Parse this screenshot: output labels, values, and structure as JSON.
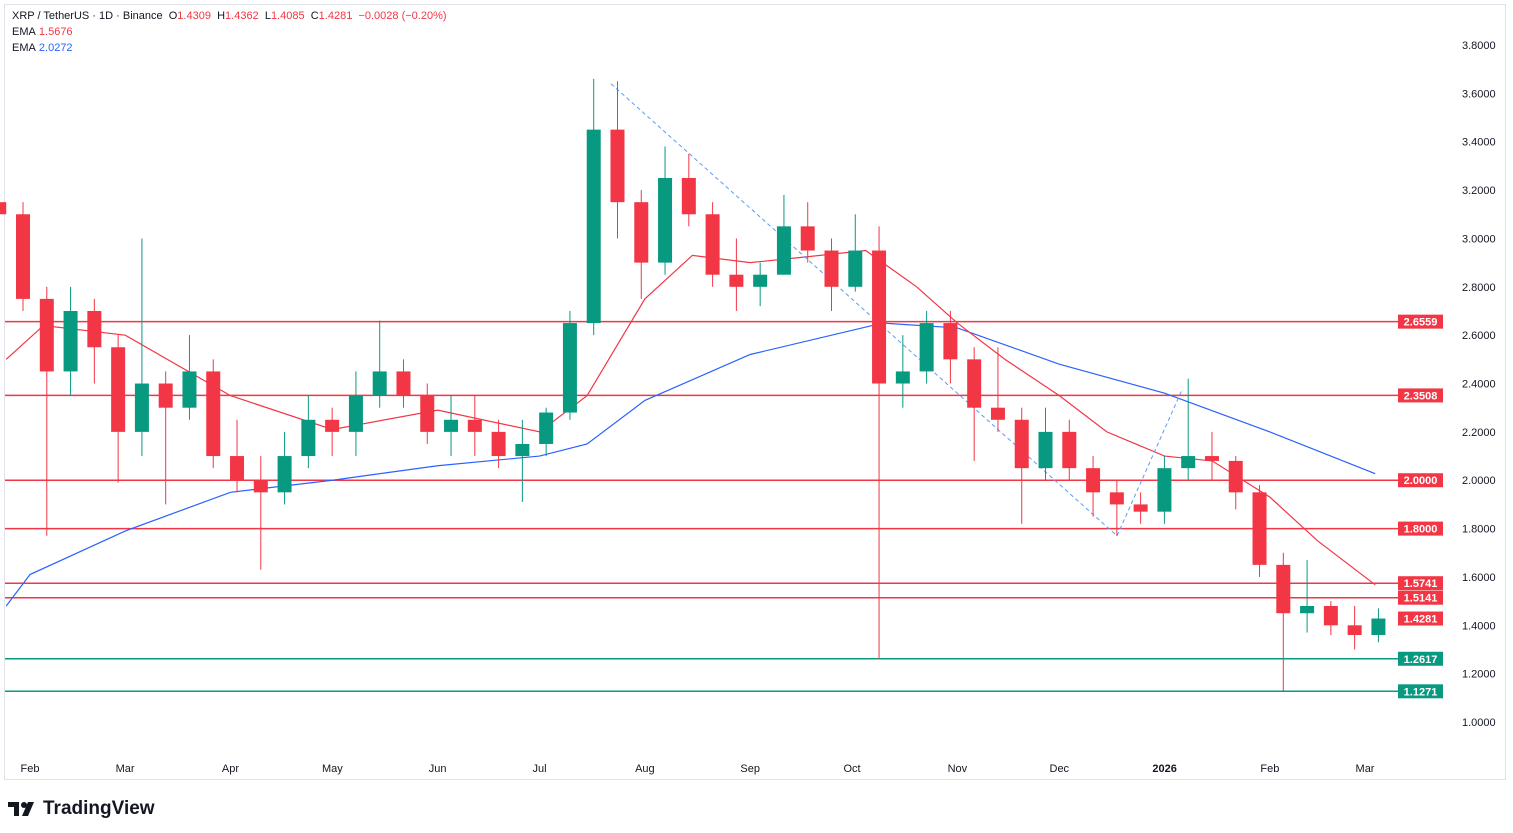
{
  "header": {
    "symbol": "XRP / TetherUS · 1D · Binance",
    "o_label": "O",
    "o": "1.4309",
    "h_label": "H",
    "h": "1.4362",
    "l_label": "L",
    "l": "1.4085",
    "c_label": "C",
    "c": "1.4281",
    "change": "−0.0028 (−0.20%)",
    "ema1_label": "EMA",
    "ema1": "1.5676",
    "ema2_label": "EMA",
    "ema2": "2.0272"
  },
  "branding": {
    "logo": "TradingView"
  },
  "colors": {
    "up": "#089981",
    "down": "#f23645",
    "ema_fast": "#f23645",
    "ema_slow": "#2962ff",
    "trendline": "#5b9cf6",
    "support": "#089981",
    "resistance": "#f23645"
  },
  "chart_data": {
    "type": "candlestick",
    "ylim": [
      0.92,
      3.93
    ],
    "yticks": [
      "3.8000",
      "3.6000",
      "3.4000",
      "3.2000",
      "3.0000",
      "2.8000",
      "2.6000",
      "2.4000",
      "2.2000",
      "2.0000",
      "1.8000",
      "1.6000",
      "1.4000",
      "1.2000",
      "1.0000"
    ],
    "xticks": [
      {
        "date": "2025-02-01",
        "label": "Feb"
      },
      {
        "date": "2025-03-01",
        "label": "Mar"
      },
      {
        "date": "2025-04-01",
        "label": "Apr"
      },
      {
        "date": "2025-05-01",
        "label": "May"
      },
      {
        "date": "2025-06-01",
        "label": "Jun"
      },
      {
        "date": "2025-07-01",
        "label": "Jul"
      },
      {
        "date": "2025-08-01",
        "label": "Aug"
      },
      {
        "date": "2025-09-01",
        "label": "Sep"
      },
      {
        "date": "2025-10-01",
        "label": "Oct"
      },
      {
        "date": "2025-11-01",
        "label": "Nov"
      },
      {
        "date": "2025-12-01",
        "label": "Dec"
      },
      {
        "date": "2026-01-01",
        "label": "2026"
      },
      {
        "date": "2026-02-01",
        "label": "Feb"
      },
      {
        "date": "2026-03-01",
        "label": "Mar"
      }
    ],
    "candles": [
      [
        "2025-01-20",
        3.15,
        3.22,
        2.95,
        3.1
      ],
      [
        "2025-01-27",
        3.1,
        3.15,
        2.7,
        2.75
      ],
      [
        "2025-02-03",
        2.75,
        2.8,
        1.77,
        2.45
      ],
      [
        "2025-02-10",
        2.45,
        2.8,
        2.35,
        2.7
      ],
      [
        "2025-02-17",
        2.7,
        2.75,
        2.4,
        2.55
      ],
      [
        "2025-02-24",
        2.55,
        2.6,
        1.99,
        2.2
      ],
      [
        "2025-03-03",
        2.2,
        3.0,
        2.1,
        2.4
      ],
      [
        "2025-03-10",
        2.4,
        2.45,
        1.9,
        2.3
      ],
      [
        "2025-03-17",
        2.3,
        2.6,
        2.25,
        2.45
      ],
      [
        "2025-03-24",
        2.45,
        2.5,
        2.05,
        2.1
      ],
      [
        "2025-03-31",
        2.1,
        2.25,
        1.95,
        2.0
      ],
      [
        "2025-04-07",
        2.0,
        2.1,
        1.63,
        1.95
      ],
      [
        "2025-04-14",
        1.95,
        2.2,
        1.9,
        2.1
      ],
      [
        "2025-04-21",
        2.1,
        2.35,
        2.05,
        2.25
      ],
      [
        "2025-04-28",
        2.25,
        2.3,
        2.1,
        2.2
      ],
      [
        "2025-05-05",
        2.2,
        2.45,
        2.1,
        2.35
      ],
      [
        "2025-05-12",
        2.35,
        2.66,
        2.3,
        2.45
      ],
      [
        "2025-05-19",
        2.45,
        2.5,
        2.3,
        2.35
      ],
      [
        "2025-05-26",
        2.35,
        2.4,
        2.15,
        2.2
      ],
      [
        "2025-06-02",
        2.2,
        2.35,
        2.1,
        2.25
      ],
      [
        "2025-06-09",
        2.25,
        2.35,
        2.1,
        2.2
      ],
      [
        "2025-06-16",
        2.2,
        2.25,
        2.05,
        2.1
      ],
      [
        "2025-06-23",
        2.1,
        2.25,
        1.91,
        2.15
      ],
      [
        "2025-06-30",
        2.15,
        2.3,
        2.1,
        2.28
      ],
      [
        "2025-07-07",
        2.28,
        2.7,
        2.25,
        2.65
      ],
      [
        "2025-07-14",
        2.65,
        3.66,
        2.6,
        3.45
      ],
      [
        "2025-07-21",
        3.45,
        3.65,
        3.0,
        3.15
      ],
      [
        "2025-07-28",
        3.15,
        3.2,
        2.75,
        2.9
      ],
      [
        "2025-08-04",
        2.9,
        3.38,
        2.85,
        3.25
      ],
      [
        "2025-08-11",
        3.25,
        3.35,
        3.05,
        3.1
      ],
      [
        "2025-08-18",
        3.1,
        3.15,
        2.8,
        2.85
      ],
      [
        "2025-08-25",
        2.85,
        3.0,
        2.7,
        2.8
      ],
      [
        "2025-09-01",
        2.8,
        2.9,
        2.72,
        2.85
      ],
      [
        "2025-09-08",
        2.85,
        3.18,
        2.85,
        3.05
      ],
      [
        "2025-09-15",
        3.05,
        3.15,
        2.9,
        2.95
      ],
      [
        "2025-09-22",
        2.95,
        3.0,
        2.7,
        2.8
      ],
      [
        "2025-09-29",
        2.8,
        3.1,
        2.78,
        2.95
      ],
      [
        "2025-10-06",
        2.95,
        3.05,
        1.26,
        2.4
      ],
      [
        "2025-10-13",
        2.4,
        2.6,
        2.3,
        2.45
      ],
      [
        "2025-10-20",
        2.45,
        2.7,
        2.4,
        2.65
      ],
      [
        "2025-10-27",
        2.65,
        2.7,
        2.4,
        2.5
      ],
      [
        "2025-11-03",
        2.5,
        2.55,
        2.08,
        2.3
      ],
      [
        "2025-11-10",
        2.3,
        2.55,
        2.2,
        2.25
      ],
      [
        "2025-11-17",
        2.25,
        2.3,
        1.82,
        2.05
      ],
      [
        "2025-11-24",
        2.05,
        2.3,
        2.0,
        2.2
      ],
      [
        "2025-12-01",
        2.2,
        2.25,
        2.0,
        2.05
      ],
      [
        "2025-12-08",
        2.05,
        2.1,
        1.85,
        1.95
      ],
      [
        "2025-12-15",
        1.95,
        2.0,
        1.77,
        1.9
      ],
      [
        "2025-12-22",
        1.9,
        1.95,
        1.82,
        1.87
      ],
      [
        "2025-12-29",
        1.87,
        2.1,
        1.82,
        2.05
      ],
      [
        "2026-01-05",
        2.05,
        2.42,
        2.0,
        2.1
      ],
      [
        "2026-01-12",
        2.1,
        2.2,
        2.0,
        2.08
      ],
      [
        "2026-01-19",
        2.08,
        2.1,
        1.88,
        1.95
      ],
      [
        "2026-01-26",
        1.95,
        1.98,
        1.6,
        1.65
      ],
      [
        "2026-02-02",
        1.65,
        1.7,
        1.13,
        1.45
      ],
      [
        "2026-02-09",
        1.45,
        1.67,
        1.37,
        1.48
      ],
      [
        "2026-02-16",
        1.48,
        1.5,
        1.36,
        1.4
      ],
      [
        "2026-02-23",
        1.4,
        1.48,
        1.3,
        1.36
      ],
      [
        "2026-03-02",
        1.36,
        1.47,
        1.33,
        1.4281
      ]
    ],
    "ema_fast": [
      [
        "2025-01-25",
        2.5
      ],
      [
        "2025-02-05",
        2.64
      ],
      [
        "2025-03-01",
        2.6
      ],
      [
        "2025-04-01",
        2.35
      ],
      [
        "2025-05-01",
        2.21
      ],
      [
        "2025-06-01",
        2.29
      ],
      [
        "2025-07-01",
        2.2
      ],
      [
        "2025-07-15",
        2.35
      ],
      [
        "2025-08-01",
        2.75
      ],
      [
        "2025-08-15",
        2.93
      ],
      [
        "2025-09-01",
        2.9
      ],
      [
        "2025-09-15",
        2.92
      ],
      [
        "2025-10-05",
        2.95
      ],
      [
        "2025-10-20",
        2.8
      ],
      [
        "2025-11-01",
        2.65
      ],
      [
        "2025-11-15",
        2.5
      ],
      [
        "2025-12-01",
        2.35
      ],
      [
        "2025-12-15",
        2.2
      ],
      [
        "2026-01-01",
        2.1
      ],
      [
        "2026-01-15",
        2.08
      ],
      [
        "2026-02-01",
        1.93
      ],
      [
        "2026-02-15",
        1.75
      ],
      [
        "2026-03-04",
        1.5676
      ]
    ],
    "ema_slow": [
      [
        "2025-01-25",
        1.48
      ],
      [
        "2025-02-01",
        1.61
      ],
      [
        "2025-03-01",
        1.79
      ],
      [
        "2025-04-01",
        1.95
      ],
      [
        "2025-05-01",
        2.0
      ],
      [
        "2025-06-01",
        2.06
      ],
      [
        "2025-07-01",
        2.1
      ],
      [
        "2025-07-15",
        2.15
      ],
      [
        "2025-08-01",
        2.33
      ],
      [
        "2025-09-01",
        2.52
      ],
      [
        "2025-10-10",
        2.65
      ],
      [
        "2025-11-01",
        2.63
      ],
      [
        "2025-12-01",
        2.48
      ],
      [
        "2026-01-01",
        2.36
      ],
      [
        "2026-02-01",
        2.2
      ],
      [
        "2026-03-04",
        2.0272
      ]
    ],
    "trendlines": [
      [
        [
          "2025-07-22",
          3.64
        ],
        [
          "2025-12-18",
          1.77
        ]
      ],
      [
        [
          "2025-12-18",
          1.77
        ],
        [
          "2026-01-06",
          2.37
        ]
      ]
    ],
    "levels": [
      {
        "value": 2.6559,
        "label": "2.6559",
        "kind": "resistance"
      },
      {
        "value": 2.3508,
        "label": "2.3508",
        "kind": "resistance"
      },
      {
        "value": 2.0,
        "label": "2.0000",
        "kind": "resistance"
      },
      {
        "value": 1.8,
        "label": "1.8000",
        "kind": "resistance"
      },
      {
        "value": 1.5741,
        "label": "1.5741",
        "kind": "resistance"
      },
      {
        "value": 1.5141,
        "label": "1.5141",
        "kind": "resistance"
      },
      {
        "value": 1.2617,
        "label": "1.2617",
        "kind": "support"
      },
      {
        "value": 1.1271,
        "label": "1.1271",
        "kind": "support"
      }
    ],
    "last_price": {
      "value": 1.4281,
      "label": "1.4281"
    }
  }
}
